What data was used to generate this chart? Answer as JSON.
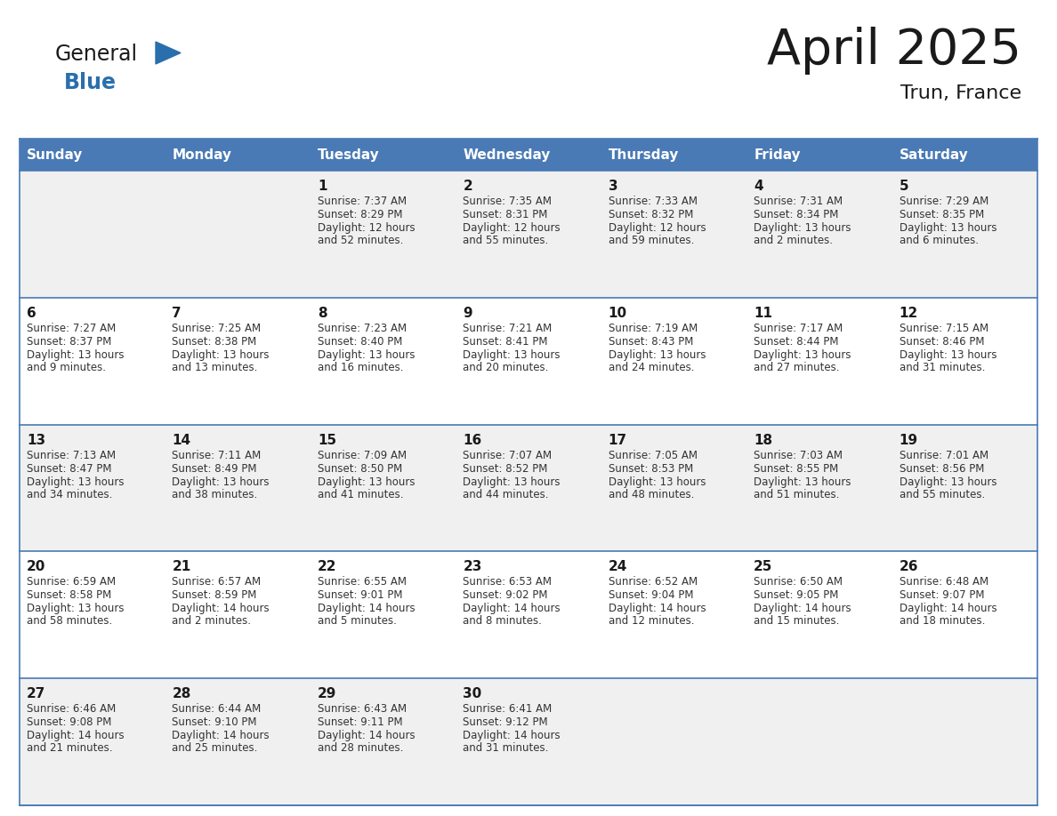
{
  "title": "April 2025",
  "subtitle": "Trun, France",
  "header_bg": "#4a7ab5",
  "header_text": "#ffffff",
  "row_bg_odd": "#f0f0f0",
  "row_bg_even": "#ffffff",
  "cell_border": "#4a7ab5",
  "day_headers": [
    "Sunday",
    "Monday",
    "Tuesday",
    "Wednesday",
    "Thursday",
    "Friday",
    "Saturday"
  ],
  "title_color": "#1a1a1a",
  "subtitle_color": "#1a1a1a",
  "day_number_color": "#1a1a1a",
  "cell_text_color": "#333333",
  "logo_general_color": "#1a1a1a",
  "logo_blue_color": "#2a6fad",
  "weeks": [
    [
      {
        "day": "",
        "sunrise": "",
        "sunset": "",
        "daylight": ""
      },
      {
        "day": "",
        "sunrise": "",
        "sunset": "",
        "daylight": ""
      },
      {
        "day": "1",
        "sunrise": "Sunrise: 7:37 AM",
        "sunset": "Sunset: 8:29 PM",
        "daylight": "Daylight: 12 hours\nand 52 minutes."
      },
      {
        "day": "2",
        "sunrise": "Sunrise: 7:35 AM",
        "sunset": "Sunset: 8:31 PM",
        "daylight": "Daylight: 12 hours\nand 55 minutes."
      },
      {
        "day": "3",
        "sunrise": "Sunrise: 7:33 AM",
        "sunset": "Sunset: 8:32 PM",
        "daylight": "Daylight: 12 hours\nand 59 minutes."
      },
      {
        "day": "4",
        "sunrise": "Sunrise: 7:31 AM",
        "sunset": "Sunset: 8:34 PM",
        "daylight": "Daylight: 13 hours\nand 2 minutes."
      },
      {
        "day": "5",
        "sunrise": "Sunrise: 7:29 AM",
        "sunset": "Sunset: 8:35 PM",
        "daylight": "Daylight: 13 hours\nand 6 minutes."
      }
    ],
    [
      {
        "day": "6",
        "sunrise": "Sunrise: 7:27 AM",
        "sunset": "Sunset: 8:37 PM",
        "daylight": "Daylight: 13 hours\nand 9 minutes."
      },
      {
        "day": "7",
        "sunrise": "Sunrise: 7:25 AM",
        "sunset": "Sunset: 8:38 PM",
        "daylight": "Daylight: 13 hours\nand 13 minutes."
      },
      {
        "day": "8",
        "sunrise": "Sunrise: 7:23 AM",
        "sunset": "Sunset: 8:40 PM",
        "daylight": "Daylight: 13 hours\nand 16 minutes."
      },
      {
        "day": "9",
        "sunrise": "Sunrise: 7:21 AM",
        "sunset": "Sunset: 8:41 PM",
        "daylight": "Daylight: 13 hours\nand 20 minutes."
      },
      {
        "day": "10",
        "sunrise": "Sunrise: 7:19 AM",
        "sunset": "Sunset: 8:43 PM",
        "daylight": "Daylight: 13 hours\nand 24 minutes."
      },
      {
        "day": "11",
        "sunrise": "Sunrise: 7:17 AM",
        "sunset": "Sunset: 8:44 PM",
        "daylight": "Daylight: 13 hours\nand 27 minutes."
      },
      {
        "day": "12",
        "sunrise": "Sunrise: 7:15 AM",
        "sunset": "Sunset: 8:46 PM",
        "daylight": "Daylight: 13 hours\nand 31 minutes."
      }
    ],
    [
      {
        "day": "13",
        "sunrise": "Sunrise: 7:13 AM",
        "sunset": "Sunset: 8:47 PM",
        "daylight": "Daylight: 13 hours\nand 34 minutes."
      },
      {
        "day": "14",
        "sunrise": "Sunrise: 7:11 AM",
        "sunset": "Sunset: 8:49 PM",
        "daylight": "Daylight: 13 hours\nand 38 minutes."
      },
      {
        "day": "15",
        "sunrise": "Sunrise: 7:09 AM",
        "sunset": "Sunset: 8:50 PM",
        "daylight": "Daylight: 13 hours\nand 41 minutes."
      },
      {
        "day": "16",
        "sunrise": "Sunrise: 7:07 AM",
        "sunset": "Sunset: 8:52 PM",
        "daylight": "Daylight: 13 hours\nand 44 minutes."
      },
      {
        "day": "17",
        "sunrise": "Sunrise: 7:05 AM",
        "sunset": "Sunset: 8:53 PM",
        "daylight": "Daylight: 13 hours\nand 48 minutes."
      },
      {
        "day": "18",
        "sunrise": "Sunrise: 7:03 AM",
        "sunset": "Sunset: 8:55 PM",
        "daylight": "Daylight: 13 hours\nand 51 minutes."
      },
      {
        "day": "19",
        "sunrise": "Sunrise: 7:01 AM",
        "sunset": "Sunset: 8:56 PM",
        "daylight": "Daylight: 13 hours\nand 55 minutes."
      }
    ],
    [
      {
        "day": "20",
        "sunrise": "Sunrise: 6:59 AM",
        "sunset": "Sunset: 8:58 PM",
        "daylight": "Daylight: 13 hours\nand 58 minutes."
      },
      {
        "day": "21",
        "sunrise": "Sunrise: 6:57 AM",
        "sunset": "Sunset: 8:59 PM",
        "daylight": "Daylight: 14 hours\nand 2 minutes."
      },
      {
        "day": "22",
        "sunrise": "Sunrise: 6:55 AM",
        "sunset": "Sunset: 9:01 PM",
        "daylight": "Daylight: 14 hours\nand 5 minutes."
      },
      {
        "day": "23",
        "sunrise": "Sunrise: 6:53 AM",
        "sunset": "Sunset: 9:02 PM",
        "daylight": "Daylight: 14 hours\nand 8 minutes."
      },
      {
        "day": "24",
        "sunrise": "Sunrise: 6:52 AM",
        "sunset": "Sunset: 9:04 PM",
        "daylight": "Daylight: 14 hours\nand 12 minutes."
      },
      {
        "day": "25",
        "sunrise": "Sunrise: 6:50 AM",
        "sunset": "Sunset: 9:05 PM",
        "daylight": "Daylight: 14 hours\nand 15 minutes."
      },
      {
        "day": "26",
        "sunrise": "Sunrise: 6:48 AM",
        "sunset": "Sunset: 9:07 PM",
        "daylight": "Daylight: 14 hours\nand 18 minutes."
      }
    ],
    [
      {
        "day": "27",
        "sunrise": "Sunrise: 6:46 AM",
        "sunset": "Sunset: 9:08 PM",
        "daylight": "Daylight: 14 hours\nand 21 minutes."
      },
      {
        "day": "28",
        "sunrise": "Sunrise: 6:44 AM",
        "sunset": "Sunset: 9:10 PM",
        "daylight": "Daylight: 14 hours\nand 25 minutes."
      },
      {
        "day": "29",
        "sunrise": "Sunrise: 6:43 AM",
        "sunset": "Sunset: 9:11 PM",
        "daylight": "Daylight: 14 hours\nand 28 minutes."
      },
      {
        "day": "30",
        "sunrise": "Sunrise: 6:41 AM",
        "sunset": "Sunset: 9:12 PM",
        "daylight": "Daylight: 14 hours\nand 31 minutes."
      },
      {
        "day": "",
        "sunrise": "",
        "sunset": "",
        "daylight": ""
      },
      {
        "day": "",
        "sunrise": "",
        "sunset": "",
        "daylight": ""
      },
      {
        "day": "",
        "sunrise": "",
        "sunset": "",
        "daylight": ""
      }
    ]
  ]
}
